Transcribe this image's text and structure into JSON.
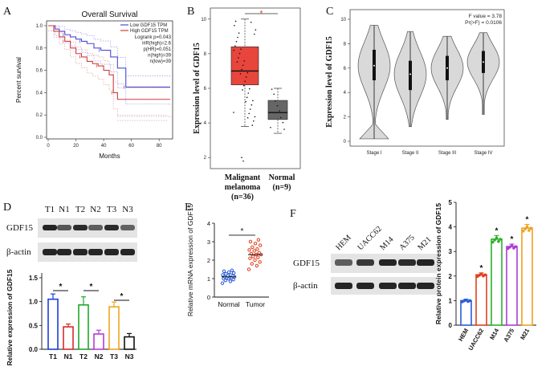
{
  "panels": {
    "A": "A",
    "B": "B",
    "C": "C",
    "D": "D",
    "E": "E",
    "F": "F"
  },
  "chart_data": [
    {
      "panel": "A",
      "type": "line",
      "title": "Overall Survival",
      "xlabel": "Months",
      "ylabel": "Percent survival",
      "xlim": [
        0,
        88
      ],
      "ylim": [
        0,
        1.0
      ],
      "x_ticks": [
        "0",
        "20",
        "40",
        "60",
        "80"
      ],
      "y_ticks": [
        "0.0",
        "0.2",
        "0.4",
        "0.6",
        "0.8",
        "1.0"
      ],
      "legend": [
        "Low GDF15 TPM",
        "High GDF15 TPM"
      ],
      "stats": [
        "Logrank p=0.043",
        "HR(high)=2.6",
        "p(HR)=0.051",
        "n(high)=39",
        "n(low)=39"
      ],
      "series": [
        {
          "name": "Low GDF15 TPM",
          "color": "#4b4bd6",
          "x": [
            0,
            5,
            8,
            12,
            16,
            20,
            24,
            28,
            33,
            38,
            45,
            50,
            56,
            88
          ],
          "y": [
            1.0,
            0.97,
            0.95,
            0.92,
            0.9,
            0.88,
            0.86,
            0.84,
            0.8,
            0.78,
            0.72,
            0.62,
            0.45,
            0.45
          ]
        },
        {
          "name": "High GDF15 TPM",
          "color": "#d13b3b",
          "x": [
            0,
            4,
            8,
            12,
            16,
            20,
            24,
            28,
            32,
            36,
            40,
            44,
            47,
            50,
            88
          ],
          "y": [
            1.0,
            0.95,
            0.9,
            0.86,
            0.8,
            0.75,
            0.72,
            0.68,
            0.66,
            0.64,
            0.6,
            0.56,
            0.4,
            0.34,
            0.34
          ]
        }
      ]
    },
    {
      "panel": "B",
      "type": "boxplot",
      "ylabel": "Expression level of GDF15",
      "ylim": [
        1.5,
        10.5
      ],
      "y_ticks": [
        "2",
        "4",
        "6",
        "8",
        "10"
      ],
      "categories": [
        "Malignant melanoma (n=36)",
        "Normal (n=9)"
      ],
      "category_lines": [
        [
          "Malignant",
          "melanoma",
          "(n=36)"
        ],
        [
          "Normal",
          "(n=9)"
        ]
      ],
      "significance": "*",
      "boxes": [
        {
          "name": "Malignant melanoma",
          "color": "#e8453c",
          "min": 3.8,
          "q1": 6.2,
          "median": 7.0,
          "q3": 8.4,
          "max": 10.0
        },
        {
          "name": "Normal",
          "color": "#666666",
          "min": 3.4,
          "q1": 4.2,
          "median": 4.6,
          "q3": 5.3,
          "max": 6.0
        }
      ]
    },
    {
      "panel": "C",
      "type": "violin",
      "ylabel": "Expression level of GDF15",
      "ylim": [
        0,
        10
      ],
      "y_ticks": [
        "0",
        "2",
        "4",
        "6",
        "8",
        "10"
      ],
      "categories": [
        "Stage I",
        "Stage II",
        "Stage III",
        "Stage IV"
      ],
      "stats": [
        "F value = 3.78",
        "Pr(>F) = 0.0106"
      ],
      "violins": [
        {
          "name": "Stage I",
          "min": 0.2,
          "max": 9.5,
          "median": 6.2,
          "q1": 5.0,
          "q3": 7.5
        },
        {
          "name": "Stage II",
          "min": 1.2,
          "max": 9.0,
          "median": 5.5,
          "q1": 4.2,
          "q3": 6.6
        },
        {
          "name": "Stage III",
          "min": 1.8,
          "max": 8.6,
          "median": 6.0,
          "q1": 5.0,
          "q3": 7.0
        },
        {
          "name": "Stage IV",
          "min": 2.2,
          "max": 8.9,
          "median": 6.5,
          "q1": 5.6,
          "q3": 7.4
        }
      ]
    },
    {
      "panel": "D",
      "type": "bar",
      "ylabel": "Relative expression of GDF15",
      "ylim": [
        0,
        1.6
      ],
      "y_ticks": [
        "0.0",
        "0.5",
        "1.0",
        "1.5"
      ],
      "categories": [
        "T1",
        "N1",
        "T2",
        "N2",
        "T3",
        "N3"
      ],
      "values": [
        1.05,
        0.47,
        0.93,
        0.32,
        0.89,
        0.26
      ],
      "errors": [
        0.11,
        0.06,
        0.17,
        0.08,
        0.1,
        0.07
      ],
      "colors": [
        "#1a3fd6",
        "#d62b2b",
        "#1fa82b",
        "#b83ad6",
        "#f0a51e",
        "#111111"
      ],
      "significance": [
        "*",
        "*",
        "*"
      ],
      "blot_lanes": [
        "T1",
        "N1",
        "T2",
        "N2",
        "T3",
        "N3"
      ],
      "blot_rows": [
        "GDF15",
        "β-actin"
      ]
    },
    {
      "panel": "E",
      "type": "scatter",
      "ylabel": "Relative mRNA expression of GDF15",
      "ylim": [
        0,
        4
      ],
      "y_ticks": [
        "0",
        "1",
        "2",
        "3",
        "4"
      ],
      "categories": [
        "Normal",
        "Tumor"
      ],
      "significance": "*",
      "series": [
        {
          "name": "Normal",
          "color": "#2a5bd6",
          "values": [
            0.75,
            0.85,
            0.9,
            0.95,
            1.0,
            1.0,
            1.05,
            1.05,
            1.1,
            1.1,
            1.1,
            1.15,
            1.15,
            1.2,
            1.2,
            1.25,
            1.3,
            1.35,
            1.4,
            1.45
          ],
          "mean": 1.1
        },
        {
          "name": "Tumor",
          "color": "#e0401f",
          "values": [
            1.5,
            1.7,
            1.8,
            1.9,
            2.0,
            2.1,
            2.15,
            2.2,
            2.3,
            2.3,
            2.35,
            2.4,
            2.5,
            2.55,
            2.6,
            2.7,
            2.8,
            2.9,
            3.0,
            3.1
          ],
          "mean": 2.3
        }
      ]
    },
    {
      "panel": "F",
      "type": "bar",
      "ylabel": "Relative protein expression of GDF15",
      "ylim": [
        0,
        5
      ],
      "y_ticks": [
        "0",
        "1",
        "2",
        "3",
        "4",
        "5"
      ],
      "categories": [
        "HEM",
        "UACC62",
        "M14",
        "A375",
        "M21"
      ],
      "values": [
        1.0,
        2.05,
        3.5,
        3.2,
        3.95
      ],
      "errors": [
        0.06,
        0.08,
        0.15,
        0.1,
        0.15
      ],
      "colors": [
        "#2a5bd6",
        "#e0401f",
        "#2bb12b",
        "#b03ad6",
        "#f0a01e"
      ],
      "significance": [
        "",
        "*",
        "*",
        "*",
        "*"
      ],
      "blot_lanes": [
        "HEM",
        "UACC62",
        "M14",
        "A375",
        "M21"
      ],
      "blot_rows": [
        "GDF15",
        "β-actin"
      ]
    }
  ]
}
